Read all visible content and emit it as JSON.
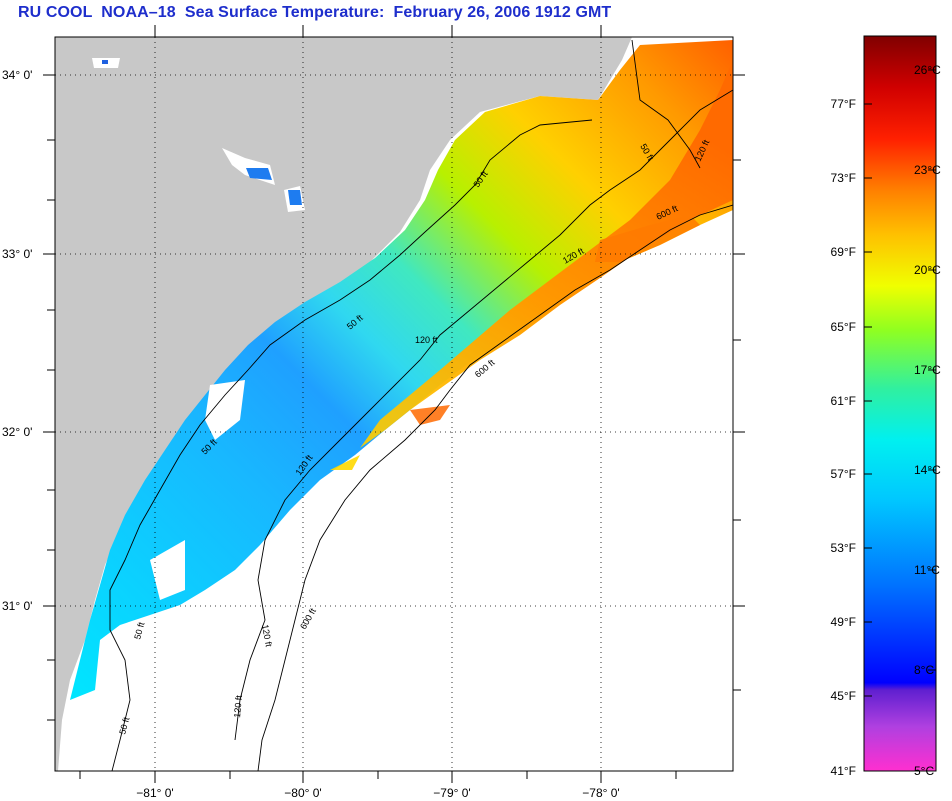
{
  "title": "RU COOL  NOAA–18  Sea Surface Temperature:  February 26, 2006 1912 GMT",
  "map": {
    "lat_labels": [
      {
        "lat": 34,
        "text": "34° 0'"
      },
      {
        "lat": 33,
        "text": "33° 0'"
      },
      {
        "lat": 32,
        "text": "32° 0'"
      },
      {
        "lat": 31,
        "text": "31° 0'"
      }
    ],
    "lon_labels": [
      {
        "lon": -81,
        "text": "−81° 0'"
      },
      {
        "lon": -80,
        "text": "−80° 0'"
      },
      {
        "lon": -79,
        "text": "−79° 0'"
      },
      {
        "lon": -78,
        "text": "−78° 0'"
      }
    ],
    "contour_labels": [
      "50 ft",
      "120 ft",
      "600 ft"
    ]
  },
  "colorbar": {
    "fahrenheit": [
      "77°F",
      "73°F",
      "69°F",
      "65°F",
      "61°F",
      "57°F",
      "53°F",
      "49°F",
      "45°F",
      "41°F"
    ],
    "celsius": [
      "26°C",
      "23°C",
      "20°C",
      "17°C",
      "14°C",
      "11°C",
      "8°C",
      "5°C"
    ],
    "colors": [
      "#ff2fd0",
      "#a040e0",
      "#5a20c8",
      "#0000ff",
      "#0070ff",
      "#00c0ff",
      "#00f0f0",
      "#20f0b0",
      "#80ff30",
      "#f0ff00",
      "#ffc000",
      "#ff8000",
      "#ff2000",
      "#d00000",
      "#900000",
      "#800000"
    ]
  }
}
